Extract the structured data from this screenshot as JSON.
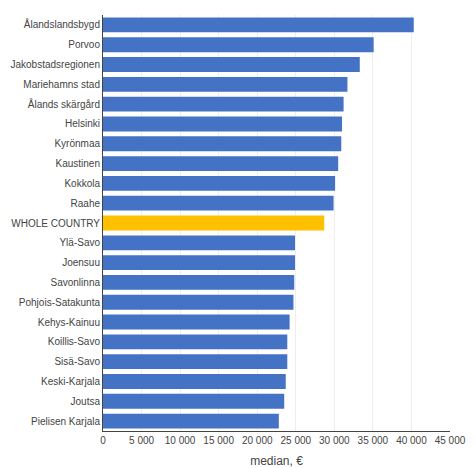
{
  "chart_data": {
    "type": "bar",
    "orientation": "horizontal",
    "categories": [
      "Pielisen Karjala",
      "Joutsa",
      "Keski-Karjala",
      "Sisä-Savo",
      "Koillis-Savo",
      "Kehys-Kainuu",
      "Pohjois-Satakunta",
      "Savonlinna",
      "Joensuu",
      "Ylä-Savo",
      "WHOLE COUNTRY",
      "Raahe",
      "Kokkola",
      "Kaustinen",
      "Kyrönmaa",
      "Helsinki",
      "Ålands skärgård",
      "Mariehamns stad",
      "Jakobstadsregionen",
      "Porvoo",
      "Ålandslandsbygd"
    ],
    "values": [
      22800,
      23500,
      23700,
      23900,
      23900,
      24200,
      24700,
      24800,
      24900,
      24900,
      28700,
      29900,
      30100,
      30500,
      30900,
      31000,
      31200,
      31700,
      33300,
      35100,
      40300
    ],
    "colors": [
      "#4472C4",
      "#4472C4",
      "#4472C4",
      "#4472C4",
      "#4472C4",
      "#4472C4",
      "#4472C4",
      "#4472C4",
      "#4472C4",
      "#4472C4",
      "#FFC000",
      "#4472C4",
      "#4472C4",
      "#4472C4",
      "#4472C4",
      "#4472C4",
      "#4472C4",
      "#4472C4",
      "#4472C4",
      "#4472C4",
      "#4472C4"
    ],
    "xlabel": "median, €",
    "xlim": [
      0,
      45000
    ],
    "xticks": [
      0,
      {
        "value": 5000,
        "label": "5 000"
      },
      {
        "value": 10000,
        "label": "10 000"
      },
      {
        "value": 15000,
        "label": "15 000"
      },
      {
        "value": 20000,
        "label": "20 000"
      },
      {
        "value": 25000,
        "label": "25 000"
      },
      {
        "value": 30000,
        "label": "30 000"
      },
      {
        "value": 35000,
        "label": "35 000"
      },
      {
        "value": 40000,
        "label": "40 000"
      },
      {
        "value": 45000,
        "label": "45 000"
      }
    ],
    "grid": true
  }
}
